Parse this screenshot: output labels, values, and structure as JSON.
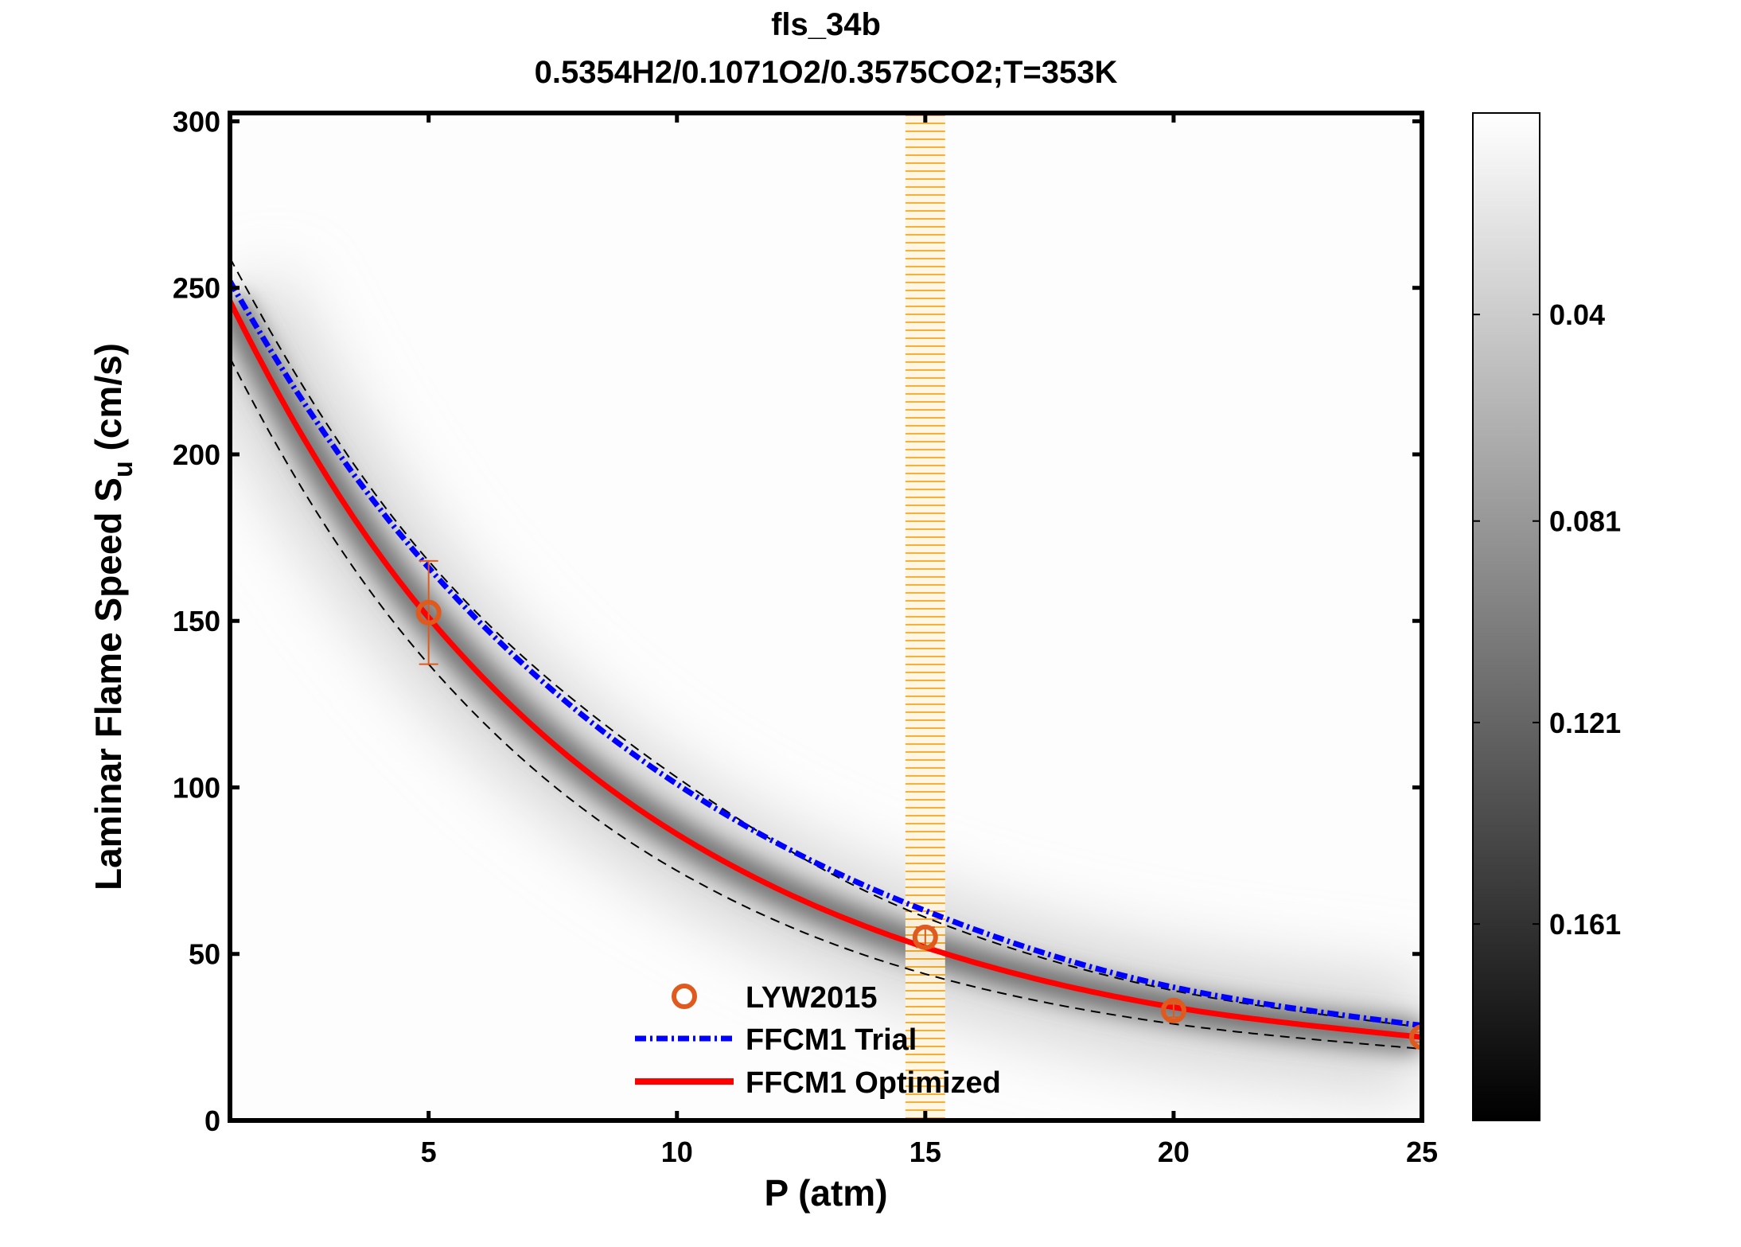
{
  "chart_data": {
    "type": "line",
    "title": "fls_34b",
    "subtitle": "0.5354H2/0.1071O2/0.3575CO2;T=353K",
    "xlabel": "P (atm)",
    "ylabel_main": "Laminar Flame Speed S",
    "ylabel_sub": "u",
    "ylabel_unit": " (cm/s)",
    "xlim": [
      1,
      25
    ],
    "ylim": [
      0,
      302.5
    ],
    "xticks": [
      5,
      10,
      15,
      20,
      25
    ],
    "yticks": [
      0,
      50,
      100,
      150,
      200,
      250,
      300
    ],
    "grid": false,
    "legend_position": "bottom-center",
    "highlight_band": {
      "x": 15,
      "half_width": 0.4,
      "color": "#f5a623"
    },
    "series": [
      {
        "name": "LYW2015",
        "kind": "scatter",
        "color": "#e05a1e",
        "x": [
          5,
          15,
          20,
          25
        ],
        "y": [
          152.5,
          55,
          33,
          25
        ],
        "err": [
          15.5,
          3,
          2,
          1.5
        ]
      },
      {
        "name": "FFCM1 Trial",
        "kind": "dashdot",
        "color": "#0000ff",
        "x": [
          1,
          5,
          10,
          15,
          20,
          25
        ],
        "y": [
          252,
          166,
          101,
          63,
          40,
          28.5
        ]
      },
      {
        "name": "FFCM1 Optimized",
        "kind": "solid",
        "color": "#ff0000",
        "x": [
          1,
          5,
          10,
          15,
          20,
          25
        ],
        "y": [
          246,
          151,
          86,
          52,
          34,
          25
        ]
      },
      {
        "kind": "bound-upper",
        "color": "#000000",
        "x": [
          1,
          5,
          10,
          15,
          20,
          25
        ],
        "y": [
          259,
          168,
          103,
          61,
          39,
          28
        ]
      },
      {
        "kind": "bound-lower",
        "color": "#000000",
        "x": [
          1,
          5,
          10,
          15,
          20,
          25
        ],
        "y": [
          229,
          137,
          75,
          44,
          29,
          21.5
        ]
      }
    ],
    "colorbar": {
      "range": [
        0,
        0.2
      ],
      "ticks": [
        0.04,
        0.081,
        0.121,
        0.161
      ],
      "tick_labels": [
        "0.04",
        "0.081",
        "0.121",
        "0.161"
      ],
      "colormap": "gray-reversed"
    }
  }
}
